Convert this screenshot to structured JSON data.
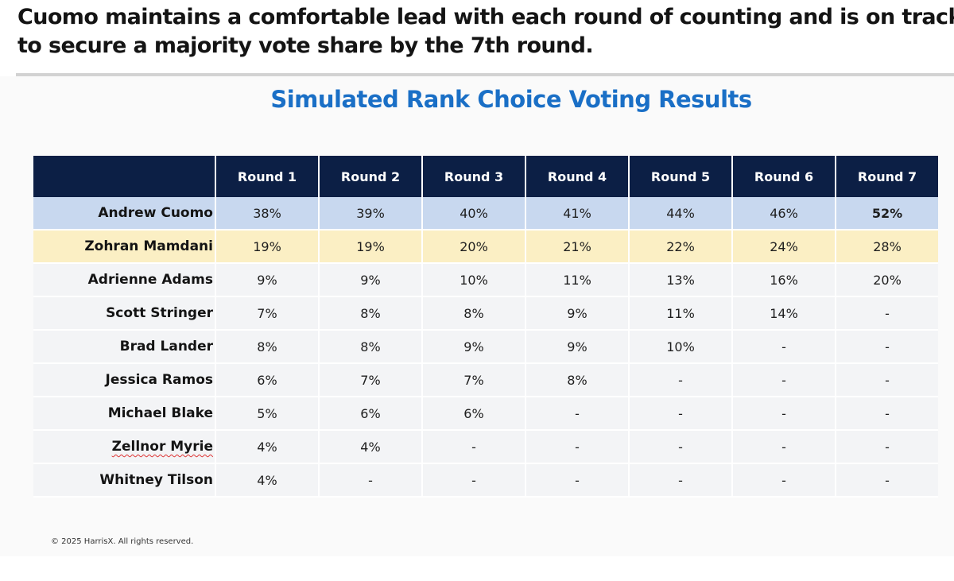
{
  "headline": {
    "line1": "Cuomo maintains a comfortable lead with each round of counting and is on track",
    "line2": "to secure a majority vote share by the 7th round."
  },
  "title": "Simulated Rank Choice Voting Results",
  "table": {
    "columns": [
      "Round 1",
      "Round 2",
      "Round 3",
      "Round 4",
      "Round 5",
      "Round 6",
      "Round 7"
    ],
    "rows": [
      {
        "name": "Andrew Cuomo",
        "values": [
          "38%",
          "39%",
          "40%",
          "41%",
          "44%",
          "46%",
          "52%"
        ]
      },
      {
        "name": "Zohran Mamdani",
        "values": [
          "19%",
          "19%",
          "20%",
          "21%",
          "22%",
          "24%",
          "28%"
        ]
      },
      {
        "name": "Adrienne Adams",
        "values": [
          "9%",
          "9%",
          "10%",
          "11%",
          "13%",
          "16%",
          "20%"
        ]
      },
      {
        "name": "Scott Stringer",
        "values": [
          "7%",
          "8%",
          "8%",
          "9%",
          "11%",
          "14%",
          "-"
        ]
      },
      {
        "name": "Brad Lander",
        "values": [
          "8%",
          "8%",
          "9%",
          "9%",
          "10%",
          "-",
          "-"
        ]
      },
      {
        "name": "Jessica Ramos",
        "values": [
          "6%",
          "7%",
          "7%",
          "8%",
          "-",
          "-",
          "-"
        ]
      },
      {
        "name": "Michael Blake",
        "values": [
          "5%",
          "6%",
          "6%",
          "-",
          "-",
          "-",
          "-"
        ]
      },
      {
        "name": "Zellnor Myrie",
        "values": [
          "4%",
          "4%",
          "-",
          "-",
          "-",
          "-",
          "-"
        ]
      },
      {
        "name": "Whitney Tilson",
        "values": [
          "4%",
          "-",
          "-",
          "-",
          "-",
          "-",
          "-"
        ]
      }
    ]
  },
  "colors": {
    "header_bg": "#0c1f45",
    "title": "#1a6fc6",
    "leader_row": "#c8d8ef",
    "second_row": "#fbefc4",
    "other_rows": "#f3f4f6"
  },
  "copyright": "© 2025 HarrisX. All rights reserved."
}
